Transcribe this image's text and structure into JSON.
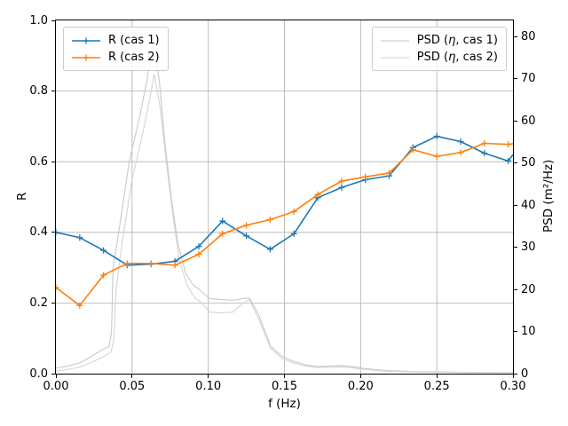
{
  "colors": {
    "cas1_blue": "#1f77b4",
    "cas2_orange": "#ff7f0e",
    "psd_gray_1": "#c9c9c9",
    "psd_gray_2": "#d4d4d4",
    "grid": "#b0b0b0",
    "legend_border": "#cccccc",
    "spine": "#000000"
  },
  "chart_data": {
    "type": "line",
    "title": "",
    "grid": true,
    "x": {
      "label": "f (Hz)",
      "min": 0.0,
      "max": 0.3,
      "tick_values": [
        0.0,
        0.05,
        0.1,
        0.15,
        0.2,
        0.25,
        0.3
      ],
      "tick_labels": [
        "0.00",
        "0.05",
        "0.10",
        "0.15",
        "0.20",
        "0.25",
        "0.30"
      ]
    },
    "y_left": {
      "label": "R",
      "min": 0.0,
      "max": 1.0,
      "tick_values": [
        0.0,
        0.2,
        0.4,
        0.6,
        0.8,
        1.0
      ],
      "tick_labels": [
        "0.0",
        "0.2",
        "0.4",
        "0.6",
        "0.8",
        "1.0"
      ]
    },
    "y_right": {
      "label": "PSD (m²/Hz)",
      "min": 0,
      "max": 83.8,
      "tick_values": [
        0,
        10,
        20,
        30,
        40,
        50,
        60,
        70,
        80
      ],
      "tick_labels": [
        "0",
        "10",
        "20",
        "30",
        "40",
        "50",
        "60",
        "70",
        "80"
      ]
    },
    "legend_left": {
      "position": "upper left",
      "entries": [
        "R (cas 1)",
        "R (cas 2)"
      ]
    },
    "legend_right": {
      "position": "upper right",
      "entries": [
        "PSD (η, cas 1)",
        "PSD (η, cas 2)"
      ],
      "parts": [
        {
          "pre": "PSD (",
          "eta": "η",
          "post": ", cas 1)"
        },
        {
          "pre": "PSD (",
          "eta": "η",
          "post": ", cas 2)"
        }
      ]
    },
    "series": [
      {
        "id": "psd1",
        "name": "PSD (η, cas 1)",
        "axis": "right",
        "color": "#c9c9c9",
        "marker": "none",
        "linewidth": 1.1,
        "points": [
          [
            0.0,
            1.3
          ],
          [
            0.008,
            1.8
          ],
          [
            0.016,
            2.6
          ],
          [
            0.023,
            4.0
          ],
          [
            0.031,
            5.8
          ],
          [
            0.035,
            6.5
          ],
          [
            0.0365,
            10
          ],
          [
            0.0375,
            25
          ],
          [
            0.041,
            33
          ],
          [
            0.048,
            50
          ],
          [
            0.055,
            61
          ],
          [
            0.06,
            70
          ],
          [
            0.064,
            79
          ],
          [
            0.068,
            69
          ],
          [
            0.0715,
            55
          ],
          [
            0.076,
            41
          ],
          [
            0.08,
            31
          ],
          [
            0.085,
            24
          ],
          [
            0.09,
            21
          ],
          [
            0.094,
            20
          ],
          [
            0.101,
            17.8
          ],
          [
            0.108,
            17.6
          ],
          [
            0.116,
            17.4
          ],
          [
            0.123,
            17.8
          ],
          [
            0.127,
            18.0
          ],
          [
            0.133,
            14
          ],
          [
            0.141,
            6.5
          ],
          [
            0.148,
            4.2
          ],
          [
            0.156,
            2.9
          ],
          [
            0.164,
            2.1
          ],
          [
            0.172,
            1.7
          ],
          [
            0.18,
            1.8
          ],
          [
            0.188,
            1.9
          ],
          [
            0.196,
            1.6
          ],
          [
            0.203,
            1.2
          ],
          [
            0.211,
            0.9
          ],
          [
            0.219,
            0.7
          ],
          [
            0.234,
            0.5
          ],
          [
            0.25,
            0.4
          ],
          [
            0.266,
            0.33
          ],
          [
            0.281,
            0.28
          ],
          [
            0.3,
            0.25
          ]
        ]
      },
      {
        "id": "psd2",
        "name": "PSD (η, cas 2)",
        "axis": "right",
        "color": "#d4d4d4",
        "marker": "none",
        "linewidth": 1.1,
        "points": [
          [
            0.0,
            0.6
          ],
          [
            0.008,
            1.0
          ],
          [
            0.016,
            1.6
          ],
          [
            0.023,
            2.6
          ],
          [
            0.031,
            4.0
          ],
          [
            0.036,
            5.0
          ],
          [
            0.038,
            8
          ],
          [
            0.0395,
            20
          ],
          [
            0.043,
            30
          ],
          [
            0.05,
            46
          ],
          [
            0.057,
            57
          ],
          [
            0.062,
            66
          ],
          [
            0.0645,
            71
          ],
          [
            0.0685,
            63
          ],
          [
            0.0725,
            50
          ],
          [
            0.077,
            37
          ],
          [
            0.081,
            27
          ],
          [
            0.086,
            21
          ],
          [
            0.091,
            18
          ],
          [
            0.095,
            17
          ],
          [
            0.101,
            14.6
          ],
          [
            0.108,
            14.4
          ],
          [
            0.116,
            14.6
          ],
          [
            0.123,
            16.8
          ],
          [
            0.127,
            17.6
          ],
          [
            0.133,
            13
          ],
          [
            0.141,
            6.0
          ],
          [
            0.148,
            3.7
          ],
          [
            0.156,
            2.5
          ],
          [
            0.164,
            1.8
          ],
          [
            0.172,
            1.4
          ],
          [
            0.18,
            1.5
          ],
          [
            0.188,
            1.6
          ],
          [
            0.196,
            1.3
          ],
          [
            0.203,
            1.0
          ],
          [
            0.211,
            0.75
          ],
          [
            0.219,
            0.55
          ],
          [
            0.234,
            0.4
          ],
          [
            0.25,
            0.32
          ],
          [
            0.266,
            0.27
          ],
          [
            0.281,
            0.22
          ],
          [
            0.3,
            0.2
          ]
        ]
      },
      {
        "id": "r1",
        "name": "R (cas 1)",
        "axis": "left",
        "color": "#1f77b4",
        "marker": "plus",
        "linewidth": 1.6,
        "points": [
          [
            0.0,
            0.4
          ],
          [
            0.015625,
            0.385
          ],
          [
            0.03125,
            0.349
          ],
          [
            0.046875,
            0.307
          ],
          [
            0.0625,
            0.31
          ],
          [
            0.078125,
            0.318
          ],
          [
            0.09375,
            0.36
          ],
          [
            0.109375,
            0.432
          ],
          [
            0.125,
            0.39
          ],
          [
            0.140625,
            0.352
          ],
          [
            0.15625,
            0.396
          ],
          [
            0.171875,
            0.498
          ],
          [
            0.1875,
            0.527
          ],
          [
            0.203125,
            0.549
          ],
          [
            0.21875,
            0.56
          ],
          [
            0.234375,
            0.64
          ],
          [
            0.25,
            0.672
          ],
          [
            0.265625,
            0.657
          ],
          [
            0.28125,
            0.624
          ],
          [
            0.296875,
            0.602
          ]
        ],
        "clip_end": [
          0.3,
          0.62
        ]
      },
      {
        "id": "r2",
        "name": "R (cas 2)",
        "axis": "left",
        "color": "#ff7f0e",
        "marker": "plus",
        "linewidth": 1.6,
        "points": [
          [
            0.0,
            0.244
          ],
          [
            0.015625,
            0.193
          ],
          [
            0.03125,
            0.279
          ],
          [
            0.046875,
            0.312
          ],
          [
            0.0625,
            0.312
          ],
          [
            0.078125,
            0.307
          ],
          [
            0.09375,
            0.338
          ],
          [
            0.109375,
            0.396
          ],
          [
            0.125,
            0.42
          ],
          [
            0.140625,
            0.436
          ],
          [
            0.15625,
            0.459
          ],
          [
            0.171875,
            0.507
          ],
          [
            0.1875,
            0.545
          ],
          [
            0.203125,
            0.557
          ],
          [
            0.21875,
            0.568
          ],
          [
            0.234375,
            0.634
          ],
          [
            0.25,
            0.615
          ],
          [
            0.265625,
            0.626
          ],
          [
            0.28125,
            0.652
          ],
          [
            0.296875,
            0.649
          ]
        ],
        "clip_end": [
          0.3,
          0.651
        ]
      }
    ]
  }
}
